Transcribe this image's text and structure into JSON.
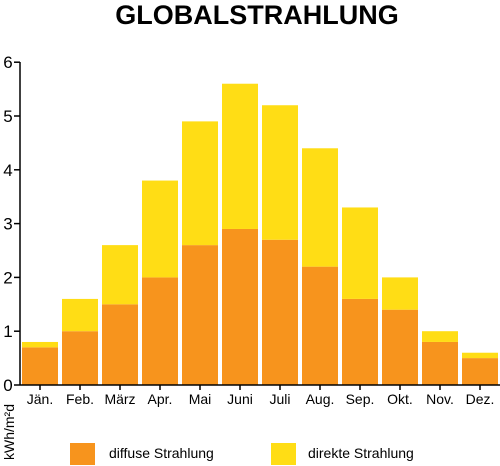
{
  "chart_data": {
    "type": "bar",
    "stacked": true,
    "title": "GLOBALSTRAHLUNG",
    "ylabel": "kWh/m²d",
    "xlabel": "",
    "ylim": [
      0,
      6
    ],
    "yticks": [
      "0",
      "1",
      "2",
      "3",
      "4",
      "5",
      "6"
    ],
    "categories": [
      "Jän.",
      "Feb.",
      "März",
      "Apr.",
      "Mai",
      "Juni",
      "Juli",
      "Aug.",
      "Sep.",
      "Okt.",
      "Nov.",
      "Dez."
    ],
    "series": [
      {
        "name": "diffuse Strahlung",
        "color": "#F7941D",
        "values": [
          0.7,
          1.0,
          1.5,
          2.0,
          2.6,
          2.9,
          2.7,
          2.2,
          1.6,
          1.4,
          0.8,
          0.5
        ]
      },
      {
        "name": "direkte Strahlung",
        "color": "#FFDD15",
        "values": [
          0.1,
          0.6,
          1.1,
          1.8,
          2.3,
          2.7,
          2.5,
          2.2,
          1.7,
          0.6,
          0.2,
          0.1
        ]
      }
    ],
    "grid": false,
    "legend_position": "bottom"
  }
}
